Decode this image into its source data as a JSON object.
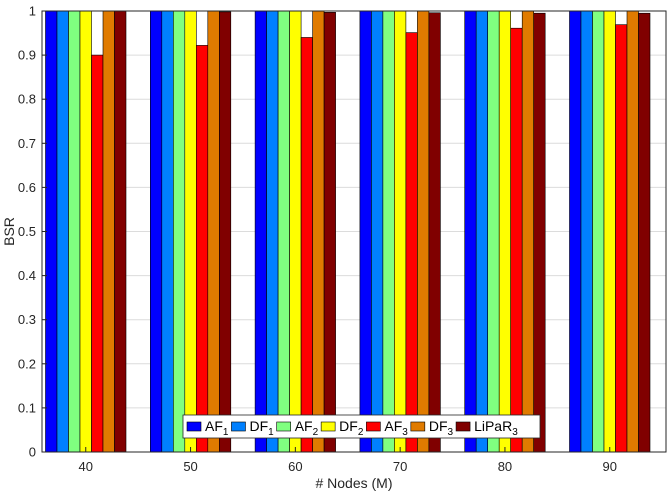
{
  "chart_data": {
    "type": "bar",
    "xlabel": "# Nodes (M)",
    "ylabel": "BSR",
    "ylim": [
      0,
      1
    ],
    "yticks": [
      "0",
      "0.1",
      "0.2",
      "0.3",
      "0.4",
      "0.5",
      "0.6",
      "0.7",
      "0.8",
      "0.9",
      "1"
    ],
    "categories": [
      "40",
      "50",
      "60",
      "70",
      "80",
      "90"
    ],
    "grid": true,
    "legend_position": "bottom-center",
    "series": [
      {
        "name": "AF",
        "subscript": "1",
        "color": "#0000ff",
        "values": [
          1,
          1,
          1,
          1,
          1,
          1
        ]
      },
      {
        "name": "DF",
        "subscript": "1",
        "color": "#0080ff",
        "values": [
          1,
          1,
          1,
          1,
          1,
          1
        ]
      },
      {
        "name": "AF",
        "subscript": "2",
        "color": "#80ff80",
        "values": [
          1,
          1,
          1,
          1,
          1,
          1
        ]
      },
      {
        "name": "DF",
        "subscript": "2",
        "color": "#ffff00",
        "values": [
          1,
          1,
          1,
          1,
          1,
          1
        ]
      },
      {
        "name": "AF",
        "subscript": "3",
        "color": "#ff0000",
        "values": [
          0.9,
          0.922,
          0.94,
          0.951,
          0.961,
          0.969
        ]
      },
      {
        "name": "DF",
        "subscript": "3",
        "color": "#e07b00",
        "values": [
          1,
          1,
          1,
          1,
          1,
          1
        ]
      },
      {
        "name": "LiPaR",
        "subscript": "3",
        "color": "#800000",
        "values": [
          1,
          0.998,
          0.997,
          0.996,
          0.995,
          0.995
        ]
      }
    ]
  }
}
